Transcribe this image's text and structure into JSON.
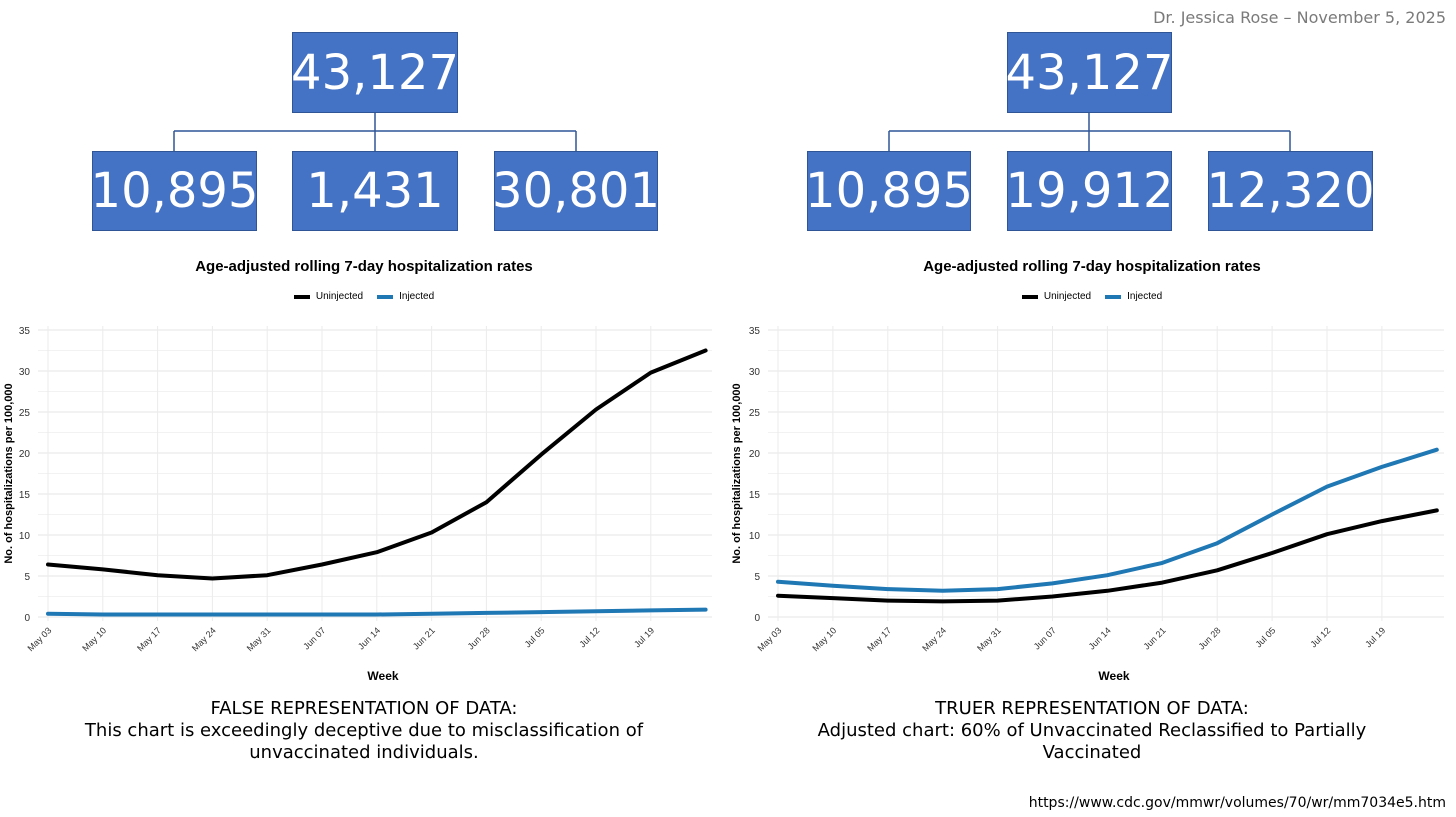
{
  "header": {
    "credit": "Dr. Jessica Rose – November 5, 2025"
  },
  "source": {
    "url": "https://www.cdc.gov/mmwr/volumes/70/wr/mm7034e5.htm"
  },
  "colors": {
    "box": "#4472c4",
    "uninjected": "#000000",
    "injected": "#1f77b4"
  },
  "panels": [
    {
      "tree": {
        "total": "43,127",
        "children": [
          "10,895",
          "1,431",
          "30,801"
        ]
      },
      "caption": {
        "line1": "FALSE REPRESENTATION OF DATA:",
        "line2": "This chart is exceedingly deceptive due to misclassification of",
        "line3": "unvaccinated individuals."
      }
    },
    {
      "tree": {
        "total": "43,127",
        "children": [
          "10,895",
          "19,912",
          "12,320"
        ]
      },
      "caption": {
        "line1": "TRUER REPRESENTATION OF DATA:",
        "line2": "Adjusted chart: 60% of Unvaccinated Reclassified to Partially",
        "line3": "Vaccinated"
      }
    }
  ],
  "chart_data": [
    {
      "type": "line",
      "title": "Age-adjusted rolling 7-day hospitalization rates",
      "xlabel": "Week",
      "ylabel": "No. of hospitalizations per 100,000",
      "ylim": [
        0,
        35
      ],
      "yticks": [
        "0",
        "5",
        "10",
        "15",
        "20",
        "25",
        "30",
        "35"
      ],
      "xticks": [
        "May 03",
        "May 10",
        "May 17",
        "May 24",
        "May 31",
        "Jun 07",
        "Jun 14",
        "Jun 21",
        "Jun 28",
        "Jul 05",
        "Jul 12",
        "Jul 19"
      ],
      "x_weeks": [
        0,
        1,
        2,
        3,
        4,
        5,
        6,
        7,
        8,
        9,
        10,
        11,
        12
      ],
      "legend": [
        "Uninjected",
        "Injected"
      ],
      "series": [
        {
          "name": "Uninjected",
          "color": "#000000",
          "values": [
            6.4,
            5.8,
            5.1,
            4.7,
            5.1,
            6.4,
            7.9,
            10.3,
            14.0,
            19.8,
            25.3,
            29.8,
            32.5
          ]
        },
        {
          "name": "Injected",
          "color": "#1f77b4",
          "values": [
            0.4,
            0.3,
            0.3,
            0.3,
            0.3,
            0.3,
            0.3,
            0.4,
            0.5,
            0.6,
            0.7,
            0.8,
            0.9
          ]
        }
      ]
    },
    {
      "type": "line",
      "title": "Age-adjusted rolling 7-day hospitalization rates",
      "xlabel": "Week",
      "ylabel": "No. of hospitalizations per 100,000",
      "ylim": [
        0,
        35
      ],
      "yticks": [
        "0",
        "5",
        "10",
        "15",
        "20",
        "25",
        "30",
        "35"
      ],
      "xticks": [
        "May 03",
        "May 10",
        "May 17",
        "May 24",
        "May 31",
        "Jun 07",
        "Jun 14",
        "Jun 21",
        "Jun 28",
        "Jul 05",
        "Jul 12",
        "Jul 19"
      ],
      "x_weeks": [
        0,
        1,
        2,
        3,
        4,
        5,
        6,
        7,
        8,
        9,
        10,
        11,
        12
      ],
      "legend": [
        "Uninjected",
        "Injected"
      ],
      "series": [
        {
          "name": "Uninjected",
          "color": "#000000",
          "values": [
            2.6,
            2.3,
            2.0,
            1.9,
            2.0,
            2.5,
            3.2,
            4.2,
            5.7,
            7.8,
            10.1,
            11.7,
            13.0
          ]
        },
        {
          "name": "Injected",
          "color": "#1f77b4",
          "values": [
            4.3,
            3.8,
            3.4,
            3.2,
            3.4,
            4.1,
            5.1,
            6.6,
            9.0,
            12.5,
            15.9,
            18.3,
            20.4
          ]
        }
      ]
    }
  ]
}
